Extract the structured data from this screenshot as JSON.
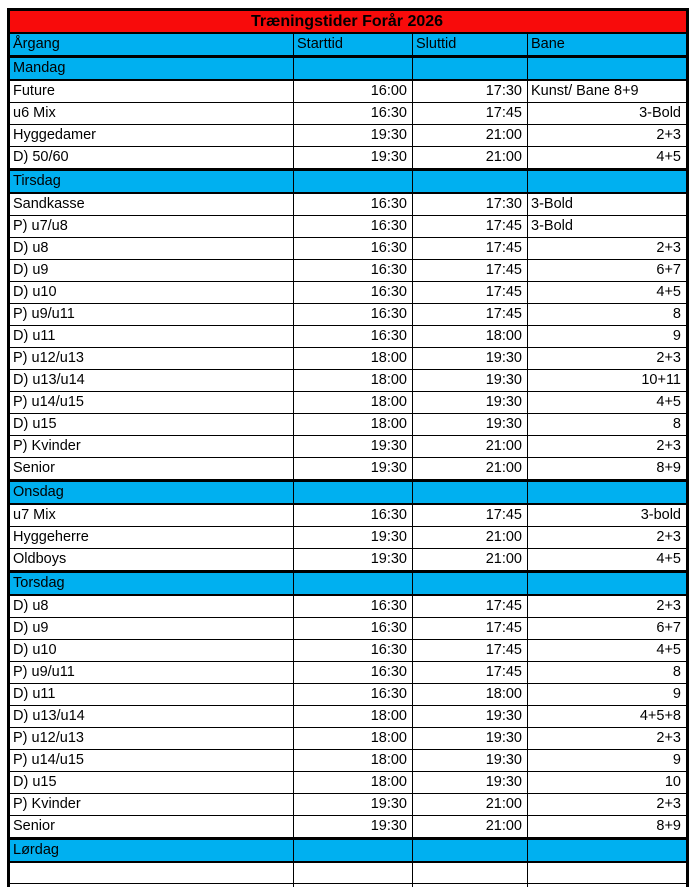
{
  "title": "Træningstider Forår 2026",
  "columns": [
    "Årgang",
    "Starttid",
    "Sluttid",
    "Bane"
  ],
  "colors": {
    "title_bg": "#f80b0b",
    "section_bg": "#00b0f0",
    "border": "#000000",
    "text": "#000000"
  },
  "sections": [
    {
      "day": "Mandag",
      "rows": [
        {
          "label": "Future",
          "start": "16:00",
          "end": "17:30",
          "bane": "Kunst/ Bane 8+9",
          "bane_align": "left"
        },
        {
          "label": "u6 Mix",
          "start": "16:30",
          "end": "17:45",
          "bane": "3-Bold"
        },
        {
          "label": "Hyggedamer",
          "start": "19:30",
          "end": "21:00",
          "bane": "2+3"
        },
        {
          "label": "D) 50/60",
          "start": "19:30",
          "end": "21:00",
          "bane": "4+5"
        }
      ]
    },
    {
      "day": "Tirsdag",
      "rows": [
        {
          "label": "Sandkasse",
          "start": "16:30",
          "end": "17:30",
          "bane": "3-Bold",
          "bane_align": "left"
        },
        {
          "label": "P) u7/u8",
          "start": "16:30",
          "end": "17:45",
          "bane": "3-Bold",
          "bane_align": "left"
        },
        {
          "label": "D) u8",
          "start": "16:30",
          "end": "17:45",
          "bane": "2+3"
        },
        {
          "label": "D) u9",
          "start": "16:30",
          "end": "17:45",
          "bane": "6+7"
        },
        {
          "label": "D) u10",
          "start": "16:30",
          "end": "17:45",
          "bane": "4+5"
        },
        {
          "label": "P) u9/u11",
          "start": "16:30",
          "end": "17:45",
          "bane": "8"
        },
        {
          "label": "D) u11",
          "start": "16:30",
          "end": "18:00",
          "bane": "9"
        },
        {
          "label": "P) u12/u13",
          "start": "18:00",
          "end": "19:30",
          "bane": "2+3"
        },
        {
          "label": "D) u13/u14",
          "start": "18:00",
          "end": "19:30",
          "bane": "10+11"
        },
        {
          "label": "P) u14/u15",
          "start": "18:00",
          "end": "19:30",
          "bane": "4+5"
        },
        {
          "label": "D) u15",
          "start": "18:00",
          "end": "19:30",
          "bane": "8"
        },
        {
          "label": "P) Kvinder",
          "start": "19:30",
          "end": "21:00",
          "bane": "2+3"
        },
        {
          "label": "Senior",
          "start": "19:30",
          "end": "21:00",
          "bane": "8+9"
        }
      ]
    },
    {
      "day": "Onsdag",
      "rows": [
        {
          "label": "u7 Mix",
          "start": "16:30",
          "end": "17:45",
          "bane": "3-bold"
        },
        {
          "label": "Hyggeherre",
          "start": "19:30",
          "end": "21:00",
          "bane": "2+3"
        },
        {
          "label": "Oldboys",
          "start": "19:30",
          "end": "21:00",
          "bane": "4+5"
        }
      ]
    },
    {
      "day": "Torsdag",
      "rows": [
        {
          "label": "D) u8",
          "start": "16:30",
          "end": "17:45",
          "bane": "2+3"
        },
        {
          "label": "D) u9",
          "start": "16:30",
          "end": "17:45",
          "bane": "6+7"
        },
        {
          "label": "D) u10",
          "start": "16:30",
          "end": "17:45",
          "bane": "4+5"
        },
        {
          "label": "P) u9/u11",
          "start": "16:30",
          "end": "17:45",
          "bane": "8"
        },
        {
          "label": "D) u11",
          "start": "16:30",
          "end": "18:00",
          "bane": "9"
        },
        {
          "label": "D) u13/u14",
          "start": "18:00",
          "end": "19:30",
          "bane": "4+5+8"
        },
        {
          "label": "P) u12/u13",
          "start": "18:00",
          "end": "19:30",
          "bane": "2+3"
        },
        {
          "label": "P) u14/u15",
          "start": "18:00",
          "end": "19:30",
          "bane": "9"
        },
        {
          "label": "D) u15",
          "start": "18:00",
          "end": "19:30",
          "bane": "10"
        },
        {
          "label": "P) Kvinder",
          "start": "19:30",
          "end": "21:00",
          "bane": "2+3"
        },
        {
          "label": "Senior",
          "start": "19:30",
          "end": "21:00",
          "bane": "8+9"
        }
      ]
    },
    {
      "day": "Lørdag",
      "rows": []
    }
  ],
  "trailing_empty_rows": 2
}
